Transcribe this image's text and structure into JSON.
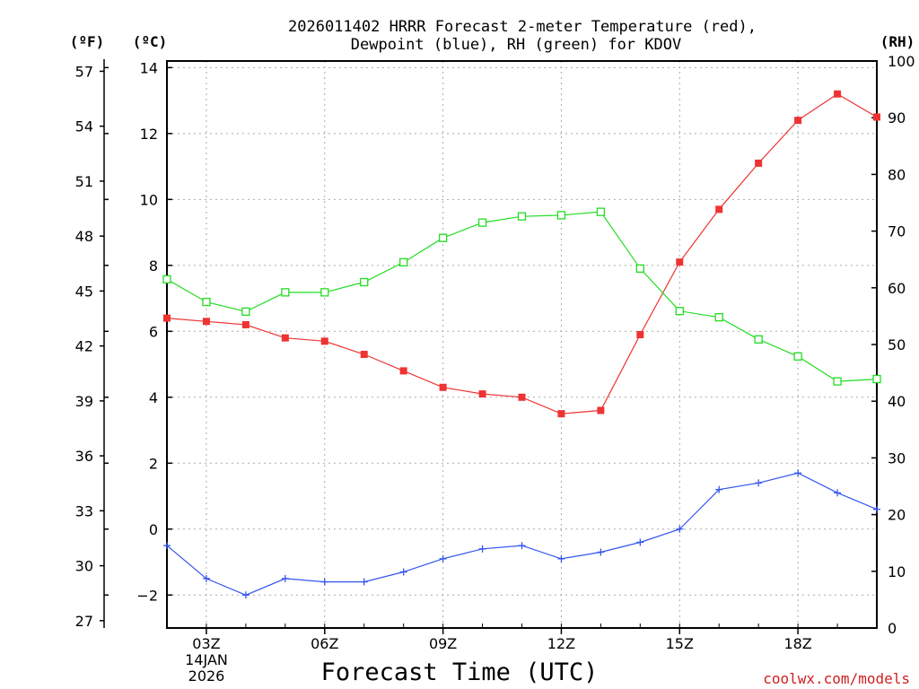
{
  "chart_data": {
    "type": "line",
    "title_line1": "2026011402 HRRR Forecast 2-meter Temperature (red),",
    "title_line2": "Dewpoint (blue), RH (green) for KDOV",
    "xlabel": "Forecast Time (UTC)",
    "credit": "coolwx.com/models",
    "left_outer_axis_label": "(ºF)",
    "left_axis_label": "(ºC)",
    "right_axis_label": "(RH)",
    "date_label_line1": "14JAN",
    "date_label_line2": "2026",
    "x_hours": [
      2,
      3,
      4,
      5,
      6,
      7,
      8,
      9,
      10,
      11,
      12,
      13,
      14,
      15,
      16,
      17,
      18,
      19,
      20
    ],
    "x_range": [
      2,
      20
    ],
    "x_tick_labels": [
      {
        "hour": 3,
        "label": "03Z"
      },
      {
        "hour": 6,
        "label": "06Z"
      },
      {
        "hour": 9,
        "label": "09Z"
      },
      {
        "hour": 12,
        "label": "12Z"
      },
      {
        "hour": 15,
        "label": "15Z"
      },
      {
        "hour": 18,
        "label": "18Z"
      }
    ],
    "celsius_range": [
      -3,
      14.2
    ],
    "celsius_ticks": [
      -2,
      0,
      2,
      4,
      6,
      8,
      10,
      12,
      14
    ],
    "celsius_tick_labels": [
      "−2",
      "0",
      "2",
      "4",
      "6",
      "8",
      "10",
      "12",
      "14"
    ],
    "fahrenheit_ticks": [
      27,
      30,
      33,
      36,
      39,
      42,
      45,
      48,
      51,
      54,
      57
    ],
    "fahrenheit_tick_labels": [
      "27",
      "30",
      "33",
      "36",
      "39",
      "42",
      "45",
      "48",
      "51",
      "54",
      "57"
    ],
    "rh_range": [
      0,
      100
    ],
    "rh_ticks": [
      0,
      10,
      20,
      30,
      40,
      50,
      60,
      70,
      80,
      90,
      100
    ],
    "rh_tick_labels": [
      "0",
      "10",
      "20",
      "30",
      "40",
      "50",
      "60",
      "70",
      "80",
      "90",
      "100"
    ],
    "series": [
      {
        "name": "Temperature",
        "axis": "celsius",
        "color": "#ee3333",
        "marker": "filled-square",
        "values": [
          6.4,
          6.3,
          6.2,
          5.8,
          5.7,
          5.3,
          4.8,
          4.3,
          4.1,
          4.0,
          3.5,
          3.6,
          5.9,
          8.1,
          9.7,
          11.1,
          12.4,
          13.2,
          12.5
        ]
      },
      {
        "name": "Dewpoint",
        "axis": "celsius",
        "color": "#3355ee",
        "marker": "plus",
        "values": [
          -0.5,
          -1.5,
          -2.0,
          -1.5,
          -1.6,
          -1.6,
          -1.3,
          -0.9,
          -0.6,
          -0.5,
          -0.9,
          -0.7,
          -0.4,
          0.0,
          1.2,
          1.4,
          1.7,
          1.1,
          0.6
        ]
      },
      {
        "name": "RH",
        "axis": "rh",
        "color": "#22dd22",
        "marker": "open-square",
        "values": [
          61.5,
          57.5,
          55.8,
          59.2,
          59.2,
          61.0,
          64.5,
          68.8,
          71.5,
          72.6,
          72.8,
          73.4,
          63.4,
          55.9,
          54.8,
          50.9,
          47.9,
          43.5,
          43.9
        ]
      }
    ]
  }
}
